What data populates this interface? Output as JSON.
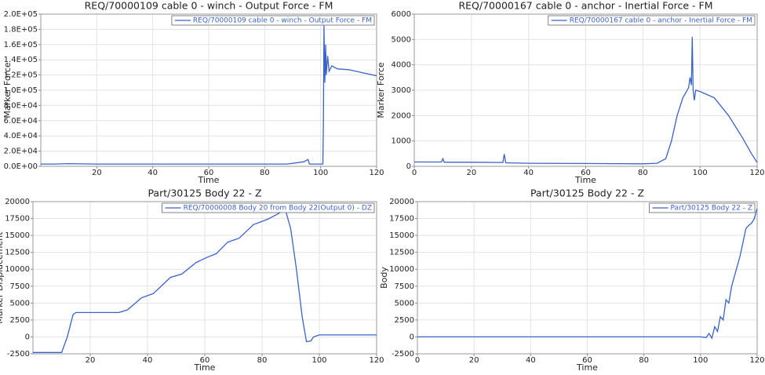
{
  "chart_data": [
    {
      "type": "line",
      "title": "REQ/70000109 cable 0 - winch - Output Force - FM",
      "xlabel": "Time",
      "ylabel": "Marker Force",
      "xlim": [
        0,
        120
      ],
      "xticks": [
        20,
        40,
        60,
        80,
        100,
        120
      ],
      "ylim": [
        0,
        200000
      ],
      "yticks": [
        {
          "value": 0,
          "label": "0.0E+00"
        },
        {
          "value": 20000,
          "label": "2.0E+04"
        },
        {
          "value": 40000,
          "label": "4.0E+04"
        },
        {
          "value": 60000,
          "label": "6.0E+04"
        },
        {
          "value": 80000,
          "label": "8.0E+04"
        },
        {
          "value": 100000,
          "label": "1.0E+05"
        },
        {
          "value": 120000,
          "label": "1.2E+05"
        },
        {
          "value": 140000,
          "label": "1.4E+05"
        },
        {
          "value": 160000,
          "label": "1.6E+05"
        },
        {
          "value": 180000,
          "label": "1.8E+05"
        },
        {
          "value": 200000,
          "label": "2.0E+05"
        }
      ],
      "grid": true,
      "legend": "upper right",
      "series": [
        {
          "name": "REQ/70000109 cable 0 - winch - Output Force - FM",
          "color": "#3a62c8",
          "x": [
            0,
            5,
            10,
            20,
            40,
            60,
            80,
            88,
            94,
            95.5,
            96,
            97,
            100,
            100.8,
            101,
            101.2,
            101.5,
            101.8,
            102,
            102.5,
            103,
            104,
            106,
            110,
            115,
            120
          ],
          "values": [
            3000,
            3000,
            3500,
            3000,
            3000,
            3000,
            3000,
            3000,
            6000,
            9000,
            3000,
            3000,
            3000,
            3000,
            60000,
            185000,
            110000,
            160000,
            120000,
            145000,
            125000,
            132000,
            128000,
            127000,
            123000,
            119000
          ]
        }
      ]
    },
    {
      "type": "line",
      "title": "REQ/70000167 cable 0 - anchor - Inertial Force - FM",
      "xlabel": "Time",
      "ylabel": "Marker Force",
      "xlim": [
        0,
        120
      ],
      "xticks": [
        0,
        20,
        40,
        60,
        80,
        100,
        120
      ],
      "ylim": [
        0,
        6000
      ],
      "yticks": [
        0,
        1000,
        2000,
        3000,
        4000,
        5000,
        6000
      ],
      "grid": true,
      "legend": "upper right",
      "series": [
        {
          "name": "REQ/70000167 cable 0 - anchor - Inertial Force - FM",
          "color": "#3a62c8",
          "x": [
            0,
            9.5,
            10,
            10.5,
            20,
            31,
            31.5,
            32,
            40,
            60,
            80,
            85,
            88,
            90,
            92,
            94,
            96,
            96.5,
            97,
            97.3,
            97.6,
            98,
            98.5,
            100,
            105,
            110,
            115,
            118,
            120
          ],
          "values": [
            170,
            170,
            300,
            160,
            160,
            150,
            480,
            140,
            120,
            110,
            100,
            120,
            300,
            1000,
            2000,
            2700,
            3100,
            3500,
            3200,
            5100,
            3000,
            2600,
            3000,
            2950,
            2700,
            2000,
            1100,
            500,
            150
          ]
        }
      ]
    },
    {
      "type": "line",
      "title": "Part/30125 Body 22 - Z",
      "xlabel": "Time",
      "ylabel": "Marker Displacement",
      "xlim": [
        0,
        120
      ],
      "xticks": [
        20,
        40,
        60,
        80,
        100,
        120
      ],
      "ylim": [
        -2500,
        20000
      ],
      "yticks": [
        -2500,
        0,
        2500,
        5000,
        7500,
        10000,
        12500,
        15000,
        17500,
        20000
      ],
      "grid": true,
      "legend": "upper right",
      "series": [
        {
          "name": "REQ/70000008 Body 20 from Body 22(Output 0) - DZ",
          "color": "#3a62c8",
          "x": [
            0,
            10,
            12,
            14,
            15,
            30,
            33,
            38,
            42,
            48,
            52,
            57,
            61,
            64,
            68,
            72,
            77,
            82,
            86,
            88,
            90,
            92,
            94,
            95.5,
            97,
            98,
            100,
            120
          ],
          "values": [
            -2300,
            -2300,
            0,
            3300,
            3600,
            3600,
            4000,
            5800,
            6400,
            8800,
            9300,
            11000,
            11800,
            12300,
            14000,
            14600,
            16600,
            17400,
            18300,
            19000,
            16000,
            10000,
            3000,
            -700,
            -600,
            0,
            300,
            300
          ]
        }
      ]
    },
    {
      "type": "line",
      "title": "Part/30125 Body 22 - Z",
      "xlabel": "Time",
      "ylabel": "Body",
      "xlim": [
        0,
        120
      ],
      "xticks": [
        0,
        20,
        40,
        60,
        80,
        100,
        120
      ],
      "ylim": [
        -2500,
        20000
      ],
      "yticks": [
        -2500,
        0,
        2500,
        5000,
        7500,
        10000,
        12500,
        15000,
        17500,
        20000
      ],
      "grid": true,
      "legend": "upper right",
      "series": [
        {
          "name": "Part/30125 Body 22 - Z",
          "color": "#3a62c8",
          "x": [
            0,
            100,
            102,
            103,
            104,
            105,
            106,
            107,
            108,
            109,
            110,
            111,
            112,
            113,
            114,
            115,
            116,
            117,
            118,
            119,
            120
          ],
          "values": [
            0,
            0,
            -100,
            500,
            -200,
            1500,
            800,
            3000,
            2500,
            5500,
            5000,
            7500,
            9000,
            10500,
            12000,
            14000,
            16000,
            16500,
            16800,
            17500,
            19000
          ]
        }
      ]
    }
  ]
}
